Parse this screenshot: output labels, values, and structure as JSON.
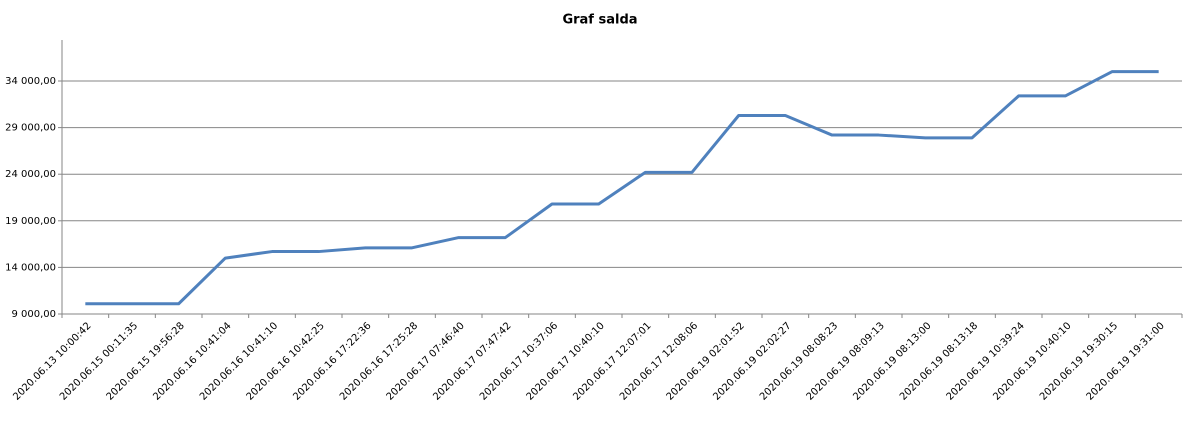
{
  "chart_data": {
    "type": "line",
    "title": "Graf salda",
    "categories": [
      "2020.06.13 10:00:42",
      "2020.06.15 00:11:35",
      "2020.06.15 19:56:28",
      "2020.06.16 10:41:04",
      "2020.06.16 10:41:10",
      "2020.06.16 10:42:25",
      "2020.06.16 17:22:36",
      "2020.06.16 17:25:28",
      "2020.06.17 07:46:40",
      "2020.06.17 07:47:42",
      "2020.06.17 10:37:06",
      "2020.06.17 10:40:10",
      "2020.06.17 12:07:01",
      "2020.06.17 12:08:06",
      "2020.06.19 02:01:52",
      "2020.06.19 02:02:27",
      "2020.06.19 08:08:23",
      "2020.06.19 08:09:13",
      "2020.06.19 08:13:00",
      "2020.06.19 08:13:18",
      "2020.06.19 10:39:24",
      "2020.06.19 10:40:10",
      "2020.06.19 19:30:15",
      "2020.06.19 19:31:00"
    ],
    "series": [
      {
        "color": "#4f81bd",
        "values": [
          10100,
          10100,
          10100,
          15000,
          15700,
          15700,
          16100,
          16100,
          17200,
          17200,
          20800,
          20800,
          24200,
          24200,
          30300,
          30300,
          28200,
          28200,
          27900,
          27900,
          32400,
          32400,
          35000,
          35000
        ]
      }
    ],
    "ylim": [
      9000,
      38400
    ],
    "yticks": [
      {
        "value": 9000,
        "label": "9 000,00"
      },
      {
        "value": 14000,
        "label": "14 000,00"
      },
      {
        "value": 19000,
        "label": "19 000,00"
      },
      {
        "value": 24000,
        "label": "24 000,00"
      },
      {
        "value": 29000,
        "label": "29 000,00"
      },
      {
        "value": 34000,
        "label": "34 000,00"
      }
    ],
    "grid": true
  }
}
